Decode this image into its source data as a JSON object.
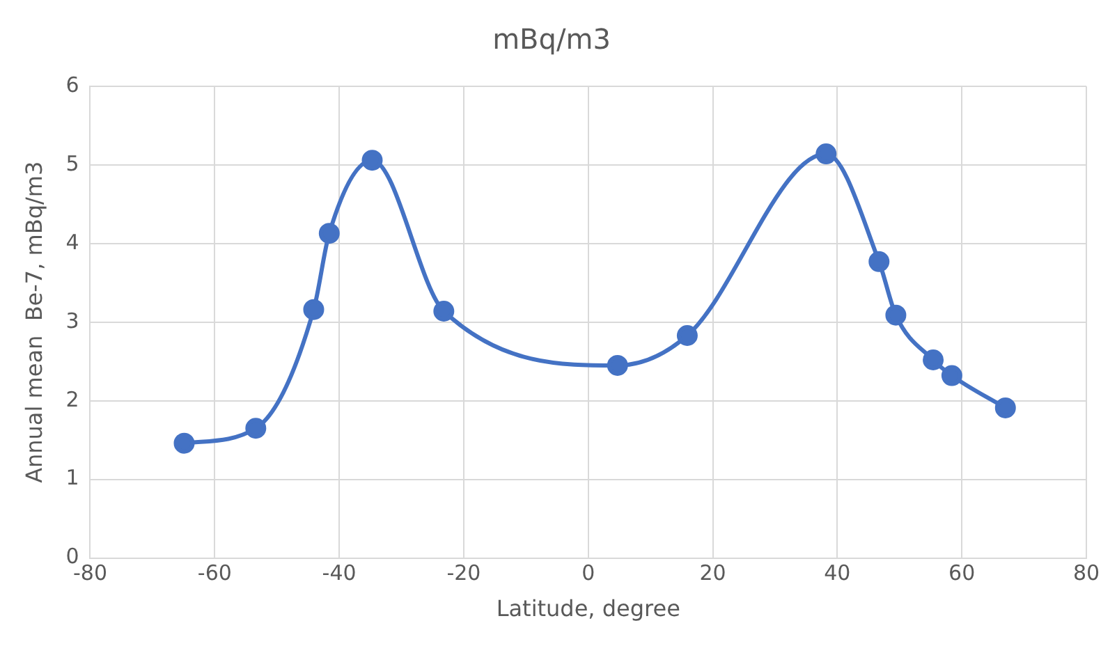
{
  "chart_data": {
    "type": "line",
    "title": "mBq/m3",
    "xlabel": "Latitude, degree",
    "ylabel": "Annual mean  Be-7, mBq/m3",
    "x": [
      -64.9,
      -53.4,
      -44.1,
      -41.6,
      -34.7,
      -23.2,
      4.7,
      15.9,
      38.2,
      46.7,
      49.4,
      55.4,
      58.4,
      67.0
    ],
    "values": [
      1.46,
      1.65,
      3.16,
      4.13,
      5.06,
      3.14,
      2.45,
      2.83,
      5.14,
      3.77,
      3.09,
      2.52,
      2.32,
      1.91
    ],
    "color": "#4472c4",
    "marker": "circle",
    "line_style": "solid",
    "grid": true,
    "legend": false,
    "xlim": [
      -80,
      80
    ],
    "xticks": [
      -80,
      -60,
      -40,
      -20,
      0,
      20,
      40,
      60,
      80
    ],
    "ylim": [
      0,
      6
    ],
    "yticks": [
      0,
      1,
      2,
      3,
      4,
      5,
      6
    ]
  }
}
